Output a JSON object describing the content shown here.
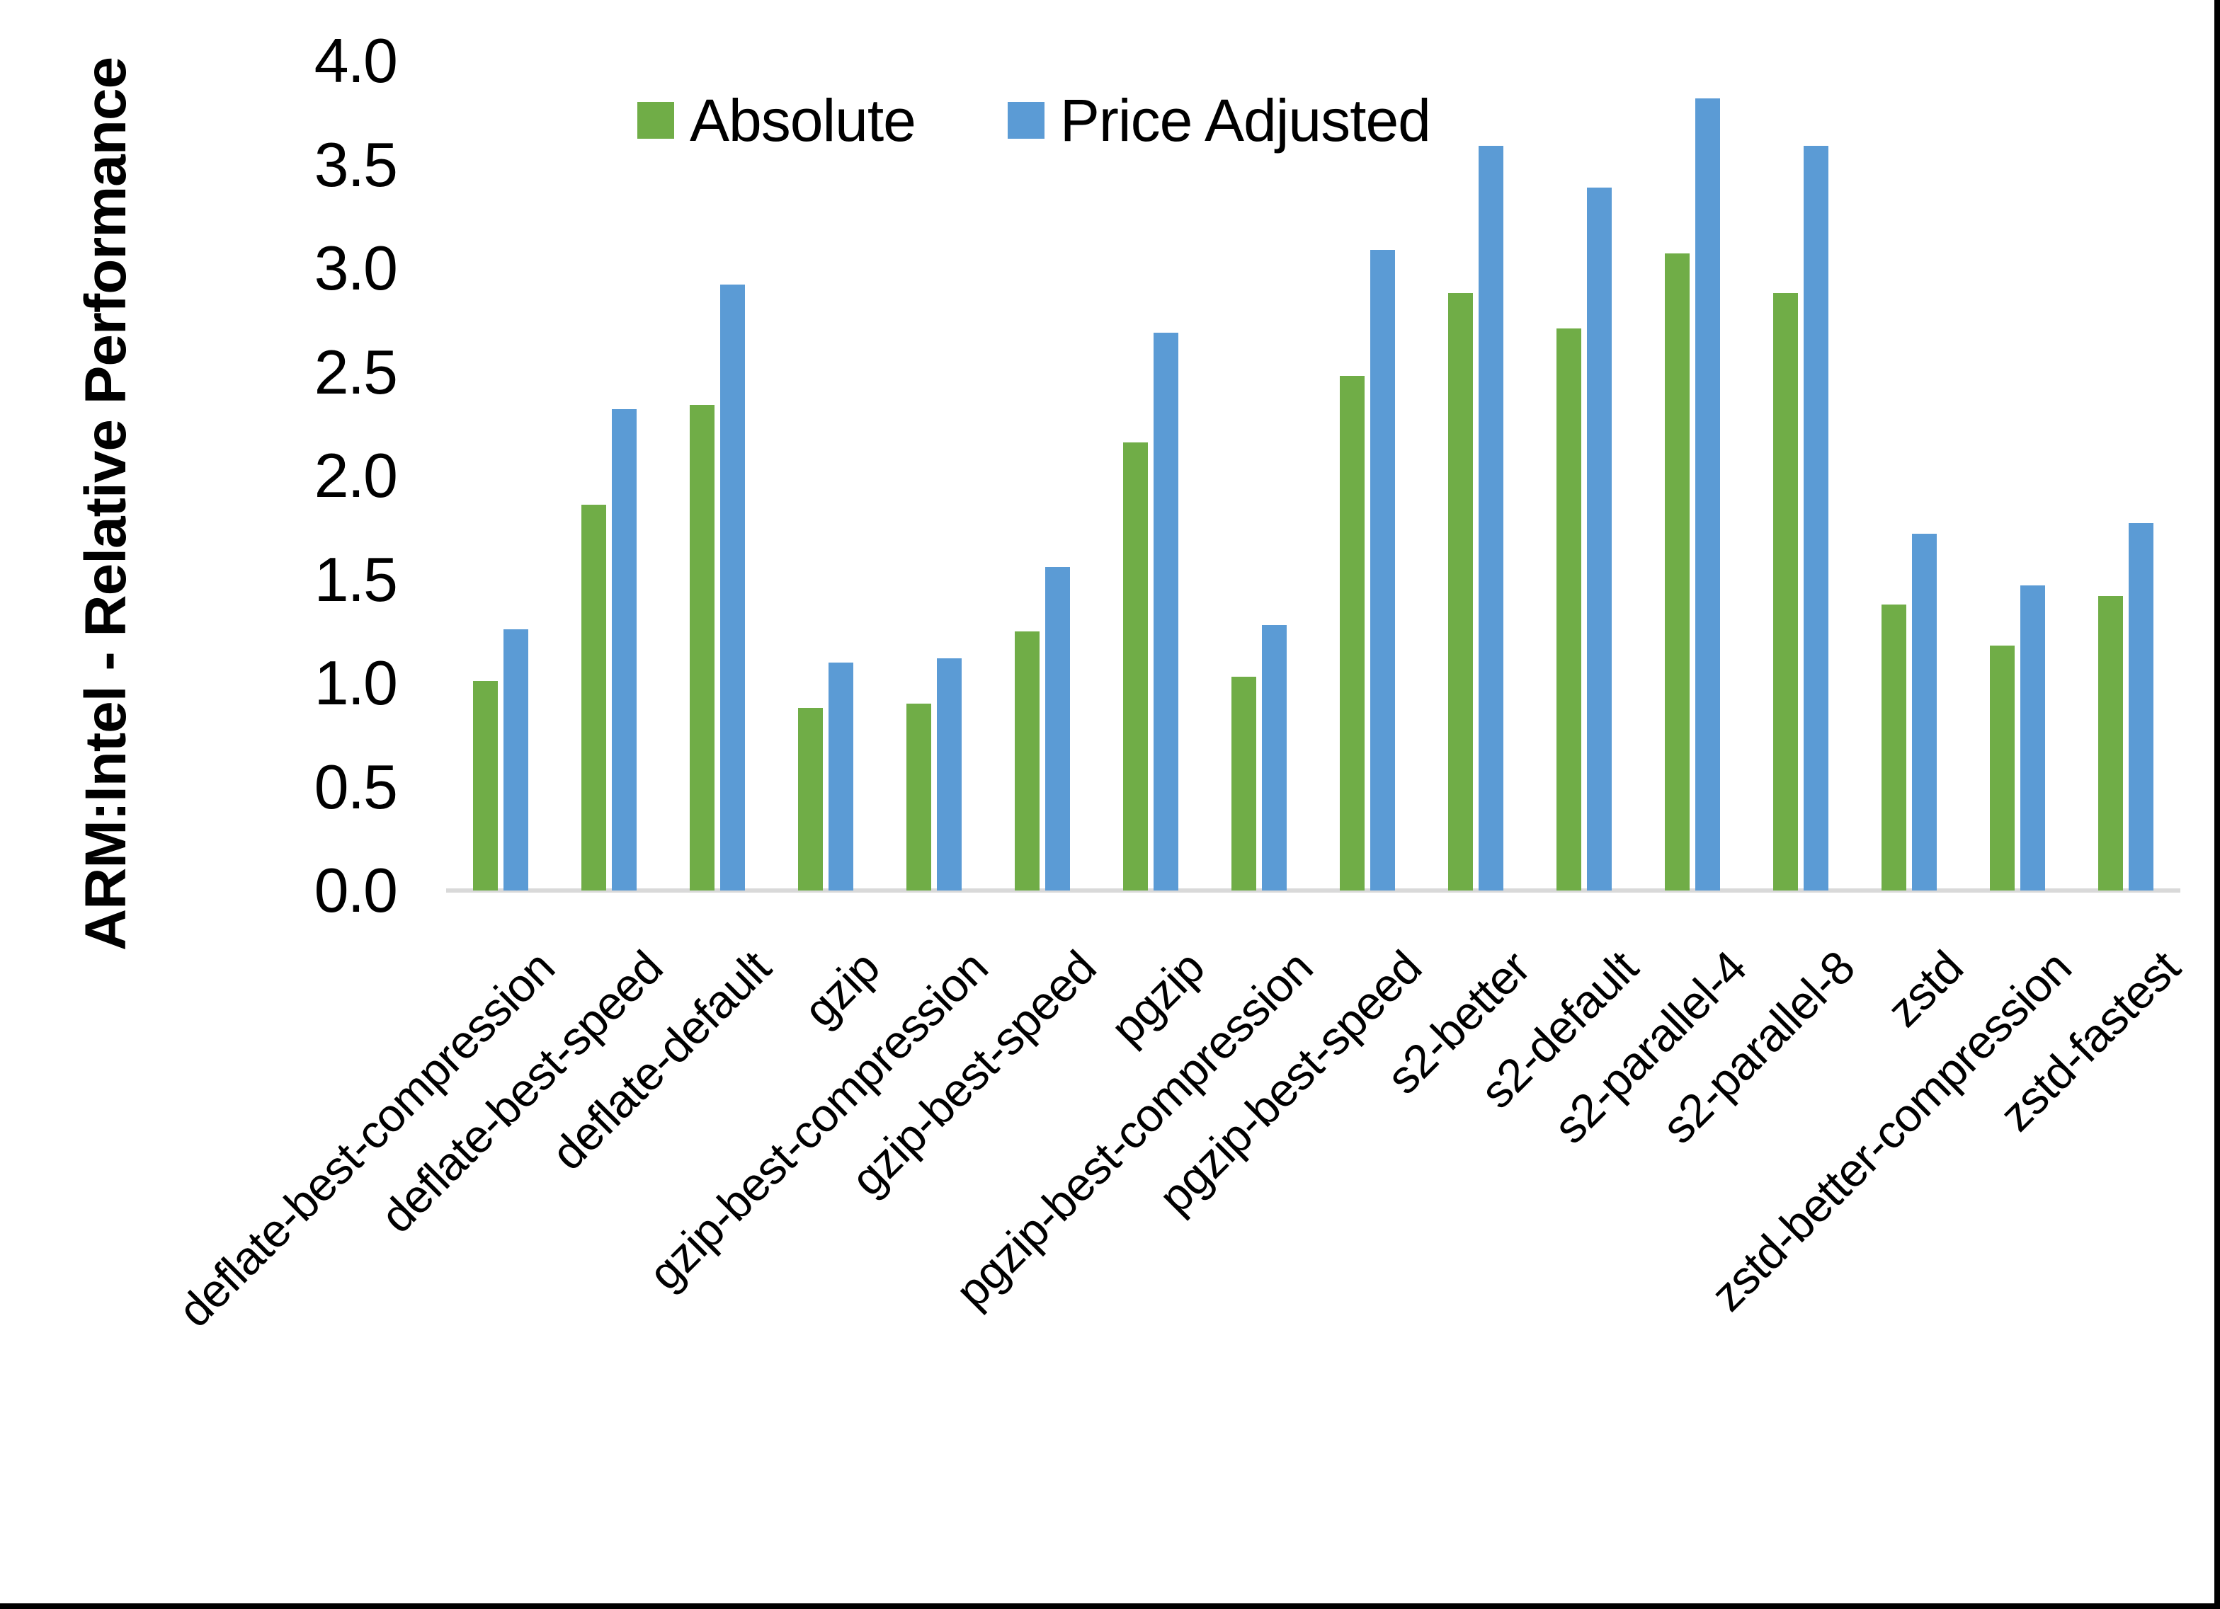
{
  "figure": {
    "background": "#FFFFFF",
    "frame_color": "#000000",
    "axis_line_color": "#D9D9D9",
    "text_color": "#000000"
  },
  "chart_data": {
    "type": "bar",
    "title": "",
    "xlabel": "",
    "ylabel": "ARM:Intel - Relative Performance",
    "ylim": [
      0.0,
      4.0
    ],
    "ytick_step": 0.5,
    "ytick_labels": [
      "0.0",
      "0.5",
      "1.0",
      "1.5",
      "2.0",
      "2.5",
      "3.0",
      "3.5",
      "4.0"
    ],
    "grid": false,
    "legend_position": "top-center",
    "categories": [
      "deflate-best-compression",
      "deflate-best-speed",
      "deflate-default",
      "gzip",
      "gzip-best-compression",
      "gzip-best-speed",
      "pgzip",
      "pgzip-best-compression",
      "pgzip-best-speed",
      "s2-better",
      "s2-default",
      "s2-parallel-4",
      "s2-parallel-8",
      "zstd",
      "zstd-better-compression",
      "zstd-fastest"
    ],
    "series": [
      {
        "name": "Absolute",
        "color": "#70AD47",
        "values": [
          1.01,
          1.86,
          2.34,
          0.88,
          0.9,
          1.25,
          2.16,
          1.03,
          2.48,
          2.88,
          2.71,
          3.07,
          2.88,
          1.38,
          1.18,
          1.42
        ]
      },
      {
        "name": "Price Adjusted",
        "color": "#5B9BD5",
        "values": [
          1.26,
          2.32,
          2.92,
          1.1,
          1.12,
          1.56,
          2.69,
          1.28,
          3.09,
          3.59,
          3.39,
          3.82,
          3.59,
          1.72,
          1.47,
          1.77
        ]
      }
    ]
  }
}
